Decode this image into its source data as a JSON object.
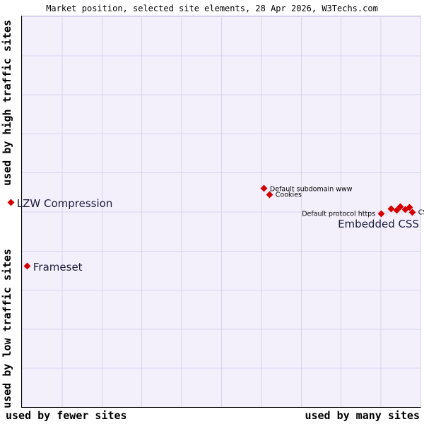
{
  "title": "Market position, selected site elements, 28 Apr 2026, W3Techs.com",
  "axes": {
    "y_top": "used by high traffic sites",
    "y_bottom": "used by low traffic sites",
    "x_left": "used by fewer sites",
    "x_right": "used by many sites"
  },
  "colors": {
    "point": "#d40000",
    "plot_background": "#f3f0fb",
    "grid": "#d9d4ec",
    "large_label": "#1c1c3c",
    "small_label": "#000000"
  },
  "chart_data": {
    "type": "scatter",
    "title": "Market position, selected site elements, 28 Apr 2026, W3Techs.com",
    "x_axis": {
      "left_label": "used by fewer sites",
      "right_label": "used by many sites",
      "numeric": false
    },
    "y_axis": {
      "top_label": "used by high traffic sites",
      "bottom_label": "used by low traffic sites",
      "numeric": false
    },
    "grid": true,
    "marker": "diamond",
    "points": [
      {
        "label": "LZW Compression",
        "label_size": "large",
        "label_pos": "right",
        "x_pct": -2.7,
        "y_pct": 47.7
      },
      {
        "label": "Frameset",
        "label_size": "large",
        "label_pos": "right",
        "x_pct": 1.4,
        "y_pct": 64.0
      },
      {
        "label": "Default subdomain www",
        "label_size": "small",
        "label_pos": "right",
        "x_pct": 60.8,
        "y_pct": 44.1
      },
      {
        "label": "Cookies",
        "label_size": "small",
        "label_pos": "right",
        "x_pct": 62.2,
        "y_pct": 45.6
      },
      {
        "label": "Default protocol https",
        "label_size": "small",
        "label_pos": "left",
        "x_pct": 90.1,
        "y_pct": 50.5
      },
      {
        "label": "",
        "x_pct": 92.7,
        "y_pct": 49.2
      },
      {
        "label": "",
        "x_pct": 94.0,
        "y_pct": 49.7
      },
      {
        "label": "",
        "x_pct": 95.0,
        "y_pct": 48.8
      },
      {
        "label": "Embedded CSS",
        "label_size": "large",
        "label_pos": "below-left",
        "x_pct": 96.1,
        "y_pct": 49.5
      },
      {
        "label": "",
        "x_pct": 97.2,
        "y_pct": 49.0
      },
      {
        "label": "CS",
        "label_size": "small",
        "label_pos": "right",
        "x_pct": 98.0,
        "y_pct": 50.1
      }
    ]
  }
}
